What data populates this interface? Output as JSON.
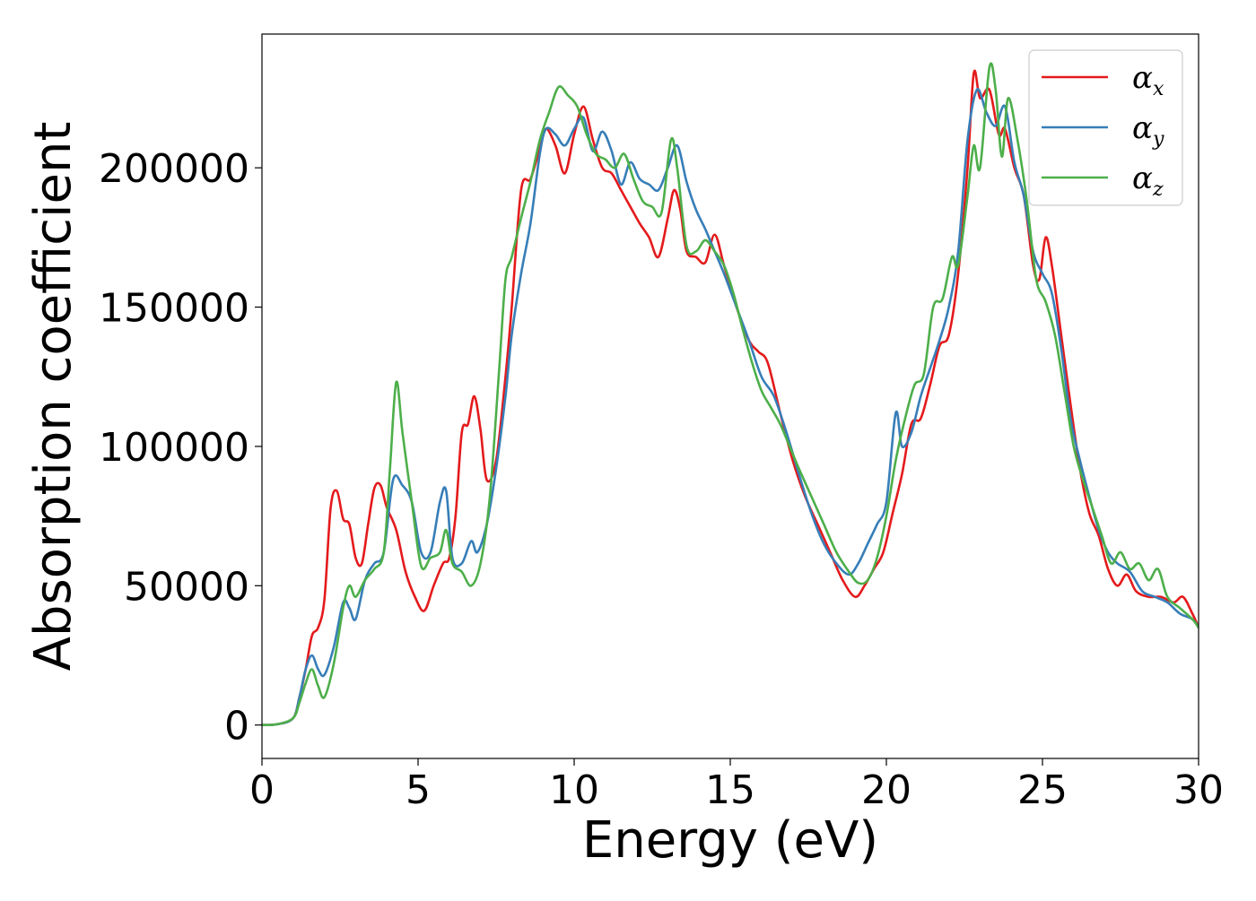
{
  "chart_data": {
    "type": "line",
    "title": "",
    "xlabel": "Energy (eV)",
    "ylabel": "Absorption coefficient",
    "xlim": [
      0,
      30
    ],
    "ylim": [
      -12000,
      248000
    ],
    "xticks": [
      0,
      5,
      10,
      15,
      20,
      25,
      30
    ],
    "yticks": [
      0,
      50000,
      100000,
      150000,
      200000
    ],
    "grid": false,
    "legend_position": "top-right",
    "series": [
      {
        "name": "α",
        "subscript": "x",
        "color": "#e41a1c",
        "points": [
          [
            0,
            0
          ],
          [
            0.5,
            300
          ],
          [
            1.0,
            2500
          ],
          [
            1.2,
            10000
          ],
          [
            1.4,
            20000
          ],
          [
            1.6,
            32000
          ],
          [
            1.8,
            35000
          ],
          [
            2.0,
            45000
          ],
          [
            2.2,
            78000
          ],
          [
            2.4,
            84000
          ],
          [
            2.6,
            74000
          ],
          [
            2.8,
            72000
          ],
          [
            3.0,
            60000
          ],
          [
            3.2,
            58000
          ],
          [
            3.4,
            72000
          ],
          [
            3.6,
            85000
          ],
          [
            3.8,
            86000
          ],
          [
            4.0,
            78000
          ],
          [
            4.3,
            70000
          ],
          [
            4.6,
            55000
          ],
          [
            4.9,
            46000
          ],
          [
            5.2,
            41000
          ],
          [
            5.5,
            50000
          ],
          [
            5.8,
            58000
          ],
          [
            6.0,
            60000
          ],
          [
            6.2,
            75000
          ],
          [
            6.4,
            105000
          ],
          [
            6.6,
            108000
          ],
          [
            6.8,
            118000
          ],
          [
            7.0,
            106000
          ],
          [
            7.2,
            88000
          ],
          [
            7.5,
            95000
          ],
          [
            7.8,
            125000
          ],
          [
            8.0,
            150000
          ],
          [
            8.3,
            192000
          ],
          [
            8.6,
            196000
          ],
          [
            8.9,
            207000
          ],
          [
            9.1,
            214000
          ],
          [
            9.4,
            208000
          ],
          [
            9.7,
            198000
          ],
          [
            10.0,
            212000
          ],
          [
            10.3,
            222000
          ],
          [
            10.6,
            210000
          ],
          [
            10.9,
            200000
          ],
          [
            11.2,
            198000
          ],
          [
            11.5,
            192000
          ],
          [
            11.8,
            186000
          ],
          [
            12.1,
            180000
          ],
          [
            12.4,
            175000
          ],
          [
            12.7,
            168000
          ],
          [
            13.0,
            182000
          ],
          [
            13.2,
            192000
          ],
          [
            13.4,
            185000
          ],
          [
            13.6,
            170000
          ],
          [
            13.9,
            168000
          ],
          [
            14.2,
            166000
          ],
          [
            14.5,
            176000
          ],
          [
            14.8,
            165000
          ],
          [
            15.2,
            150000
          ],
          [
            15.6,
            138000
          ],
          [
            15.9,
            134000
          ],
          [
            16.2,
            130000
          ],
          [
            16.6,
            112000
          ],
          [
            17.0,
            95000
          ],
          [
            17.4,
            82000
          ],
          [
            17.8,
            72000
          ],
          [
            18.2,
            62000
          ],
          [
            18.6,
            52000
          ],
          [
            19.0,
            46000
          ],
          [
            19.3,
            50000
          ],
          [
            19.6,
            56000
          ],
          [
            19.9,
            62000
          ],
          [
            20.2,
            76000
          ],
          [
            20.5,
            90000
          ],
          [
            20.8,
            108000
          ],
          [
            21.1,
            110000
          ],
          [
            21.4,
            122000
          ],
          [
            21.7,
            136000
          ],
          [
            22.0,
            140000
          ],
          [
            22.3,
            162000
          ],
          [
            22.6,
            200000
          ],
          [
            22.8,
            234000
          ],
          [
            23.0,
            225000
          ],
          [
            23.3,
            228000
          ],
          [
            23.6,
            212000
          ],
          [
            23.8,
            214000
          ],
          [
            24.1,
            200000
          ],
          [
            24.4,
            190000
          ],
          [
            24.7,
            165000
          ],
          [
            24.9,
            160000
          ],
          [
            25.1,
            175000
          ],
          [
            25.3,
            165000
          ],
          [
            25.6,
            140000
          ],
          [
            25.9,
            115000
          ],
          [
            26.2,
            92000
          ],
          [
            26.5,
            76000
          ],
          [
            26.8,
            68000
          ],
          [
            27.1,
            56000
          ],
          [
            27.4,
            50000
          ],
          [
            27.7,
            54000
          ],
          [
            28.0,
            48000
          ],
          [
            28.4,
            46000
          ],
          [
            28.8,
            46000
          ],
          [
            29.2,
            44000
          ],
          [
            29.5,
            46000
          ],
          [
            29.8,
            40000
          ],
          [
            30.0,
            35000
          ]
        ]
      },
      {
        "name": "α",
        "subscript": "y",
        "color": "#377eb8",
        "points": [
          [
            0,
            0
          ],
          [
            0.5,
            300
          ],
          [
            1.0,
            2500
          ],
          [
            1.2,
            10000
          ],
          [
            1.4,
            20000
          ],
          [
            1.6,
            25000
          ],
          [
            1.8,
            20000
          ],
          [
            2.0,
            18000
          ],
          [
            2.3,
            28000
          ],
          [
            2.6,
            44000
          ],
          [
            2.8,
            42000
          ],
          [
            3.0,
            38000
          ],
          [
            3.3,
            52000
          ],
          [
            3.6,
            58000
          ],
          [
            3.9,
            62000
          ],
          [
            4.2,
            88000
          ],
          [
            4.5,
            86000
          ],
          [
            4.8,
            80000
          ],
          [
            5.1,
            62000
          ],
          [
            5.4,
            62000
          ],
          [
            5.7,
            80000
          ],
          [
            5.9,
            84000
          ],
          [
            6.1,
            60000
          ],
          [
            6.4,
            58000
          ],
          [
            6.7,
            66000
          ],
          [
            6.9,
            62000
          ],
          [
            7.2,
            72000
          ],
          [
            7.5,
            92000
          ],
          [
            7.8,
            118000
          ],
          [
            8.0,
            140000
          ],
          [
            8.3,
            162000
          ],
          [
            8.6,
            180000
          ],
          [
            8.9,
            205000
          ],
          [
            9.1,
            214000
          ],
          [
            9.4,
            212000
          ],
          [
            9.7,
            208000
          ],
          [
            10.0,
            214000
          ],
          [
            10.3,
            218000
          ],
          [
            10.6,
            206000
          ],
          [
            10.9,
            213000
          ],
          [
            11.2,
            206000
          ],
          [
            11.5,
            194000
          ],
          [
            11.8,
            202000
          ],
          [
            12.1,
            196000
          ],
          [
            12.4,
            194000
          ],
          [
            12.7,
            192000
          ],
          [
            13.0,
            200000
          ],
          [
            13.3,
            208000
          ],
          [
            13.6,
            195000
          ],
          [
            13.9,
            185000
          ],
          [
            14.2,
            178000
          ],
          [
            14.5,
            170000
          ],
          [
            14.8,
            162000
          ],
          [
            15.2,
            150000
          ],
          [
            15.6,
            138000
          ],
          [
            16.0,
            125000
          ],
          [
            16.4,
            118000
          ],
          [
            16.8,
            105000
          ],
          [
            17.2,
            90000
          ],
          [
            17.6,
            76000
          ],
          [
            18.0,
            65000
          ],
          [
            18.4,
            58000
          ],
          [
            18.8,
            54000
          ],
          [
            19.1,
            58000
          ],
          [
            19.4,
            65000
          ],
          [
            19.7,
            72000
          ],
          [
            20.0,
            80000
          ],
          [
            20.3,
            112000
          ],
          [
            20.5,
            100000
          ],
          [
            20.8,
            105000
          ],
          [
            21.1,
            118000
          ],
          [
            21.4,
            128000
          ],
          [
            21.7,
            138000
          ],
          [
            22.0,
            150000
          ],
          [
            22.3,
            170000
          ],
          [
            22.6,
            210000
          ],
          [
            22.9,
            228000
          ],
          [
            23.2,
            220000
          ],
          [
            23.5,
            215000
          ],
          [
            23.8,
            222000
          ],
          [
            24.1,
            202000
          ],
          [
            24.4,
            190000
          ],
          [
            24.7,
            170000
          ],
          [
            25.0,
            162000
          ],
          [
            25.3,
            155000
          ],
          [
            25.6,
            135000
          ],
          [
            25.9,
            110000
          ],
          [
            26.2,
            95000
          ],
          [
            26.5,
            82000
          ],
          [
            26.8,
            70000
          ],
          [
            27.1,
            62000
          ],
          [
            27.4,
            58000
          ],
          [
            27.8,
            55000
          ],
          [
            28.2,
            48000
          ],
          [
            28.6,
            46000
          ],
          [
            29.0,
            44000
          ],
          [
            29.4,
            40000
          ],
          [
            29.8,
            38000
          ],
          [
            30.0,
            35000
          ]
        ]
      },
      {
        "name": "α",
        "subscript": "z",
        "color": "#4daf4a",
        "points": [
          [
            0,
            0
          ],
          [
            0.5,
            300
          ],
          [
            1.0,
            2500
          ],
          [
            1.2,
            8000
          ],
          [
            1.4,
            15000
          ],
          [
            1.6,
            20000
          ],
          [
            1.8,
            14000
          ],
          [
            2.0,
            10000
          ],
          [
            2.3,
            22000
          ],
          [
            2.6,
            42000
          ],
          [
            2.8,
            50000
          ],
          [
            3.0,
            46000
          ],
          [
            3.3,
            52000
          ],
          [
            3.6,
            56000
          ],
          [
            3.9,
            62000
          ],
          [
            4.1,
            92000
          ],
          [
            4.3,
            123000
          ],
          [
            4.5,
            105000
          ],
          [
            4.8,
            80000
          ],
          [
            5.1,
            57000
          ],
          [
            5.4,
            60000
          ],
          [
            5.7,
            62000
          ],
          [
            5.9,
            70000
          ],
          [
            6.1,
            58000
          ],
          [
            6.4,
            55000
          ],
          [
            6.7,
            50000
          ],
          [
            7.0,
            58000
          ],
          [
            7.3,
            82000
          ],
          [
            7.6,
            128000
          ],
          [
            7.8,
            160000
          ],
          [
            8.0,
            168000
          ],
          [
            8.3,
            182000
          ],
          [
            8.6,
            195000
          ],
          [
            8.9,
            210000
          ],
          [
            9.2,
            220000
          ],
          [
            9.5,
            229000
          ],
          [
            9.8,
            226000
          ],
          [
            10.1,
            222000
          ],
          [
            10.4,
            212000
          ],
          [
            10.7,
            205000
          ],
          [
            11.0,
            203000
          ],
          [
            11.3,
            200000
          ],
          [
            11.6,
            205000
          ],
          [
            11.9,
            196000
          ],
          [
            12.2,
            188000
          ],
          [
            12.5,
            186000
          ],
          [
            12.8,
            184000
          ],
          [
            13.1,
            210000
          ],
          [
            13.3,
            200000
          ],
          [
            13.6,
            172000
          ],
          [
            13.9,
            170000
          ],
          [
            14.2,
            174000
          ],
          [
            14.5,
            170000
          ],
          [
            14.8,
            165000
          ],
          [
            15.1,
            155000
          ],
          [
            15.4,
            142000
          ],
          [
            15.7,
            130000
          ],
          [
            16.0,
            120000
          ],
          [
            16.3,
            114000
          ],
          [
            16.6,
            108000
          ],
          [
            16.9,
            100000
          ],
          [
            17.2,
            92000
          ],
          [
            17.6,
            82000
          ],
          [
            18.0,
            72000
          ],
          [
            18.4,
            62000
          ],
          [
            18.8,
            55000
          ],
          [
            19.1,
            51000
          ],
          [
            19.4,
            52000
          ],
          [
            19.7,
            60000
          ],
          [
            20.0,
            75000
          ],
          [
            20.3,
            95000
          ],
          [
            20.6,
            110000
          ],
          [
            20.9,
            122000
          ],
          [
            21.2,
            126000
          ],
          [
            21.5,
            150000
          ],
          [
            21.8,
            153000
          ],
          [
            22.1,
            168000
          ],
          [
            22.3,
            165000
          ],
          [
            22.6,
            190000
          ],
          [
            22.8,
            208000
          ],
          [
            23.0,
            200000
          ],
          [
            23.3,
            236000
          ],
          [
            23.5,
            228000
          ],
          [
            23.7,
            204000
          ],
          [
            23.9,
            225000
          ],
          [
            24.2,
            210000
          ],
          [
            24.5,
            188000
          ],
          [
            24.8,
            160000
          ],
          [
            25.1,
            152000
          ],
          [
            25.4,
            140000
          ],
          [
            25.7,
            120000
          ],
          [
            26.0,
            100000
          ],
          [
            26.3,
            88000
          ],
          [
            26.6,
            78000
          ],
          [
            26.9,
            68000
          ],
          [
            27.2,
            58000
          ],
          [
            27.5,
            62000
          ],
          [
            27.8,
            56000
          ],
          [
            28.1,
            58000
          ],
          [
            28.4,
            52000
          ],
          [
            28.7,
            56000
          ],
          [
            29.0,
            46000
          ],
          [
            29.4,
            42000
          ],
          [
            29.8,
            38000
          ],
          [
            30.0,
            35000
          ]
        ]
      }
    ]
  }
}
